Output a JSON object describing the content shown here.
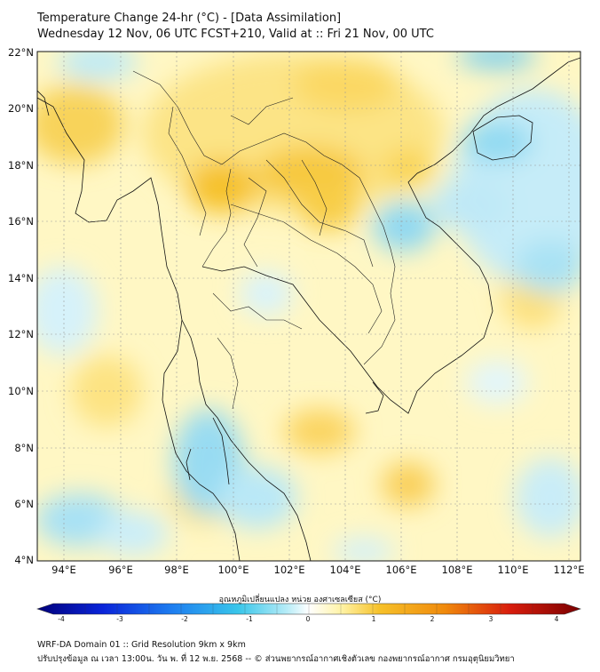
{
  "title": {
    "line1": "Temperature Change 24-hr (°C) - [Data Assimilation]",
    "line2": "Wednesday 12 Nov, 06 UTC FCST+210, Valid at :: Fri 21 Nov, 00 UTC"
  },
  "map": {
    "lat_labels": [
      "22°N",
      "20°N",
      "18°N",
      "16°N",
      "14°N",
      "12°N",
      "10°N",
      "8°N",
      "6°N",
      "4°N"
    ],
    "lon_labels": [
      "94°E",
      "96°E",
      "98°E",
      "100°E",
      "102°E",
      "104°E",
      "106°E",
      "108°E",
      "110°E",
      "112°E"
    ]
  },
  "colorbar": {
    "title": "อุณหภูมิเปลี่ยนแปลง หน่วย องศาเซลเซียส (°C)",
    "ticks": [
      "-4",
      "-3",
      "-2",
      "-1",
      "0",
      "1",
      "2",
      "3",
      "4"
    ],
    "colors": {
      "cold_end": "#00007a",
      "mid_cold": "#39c6ea",
      "zero": "#ffffff",
      "mid_warm": "#f6c12a",
      "warm_end": "#7a0000"
    }
  },
  "footer": {
    "line1": "WRF-DA Domain 01 :: Grid Resolution 9km x 9km",
    "line2": "ปรับปรุงข้อมูล ณ เวลา 13:00น. วัน พ. ที่ 12 พ.ย. 2568 -- © ส่วนพยากรณ์อากาศเชิงตัวเลข กองพยากรณ์อากาศ กรมอุตุนิยมวิทยา"
  }
}
